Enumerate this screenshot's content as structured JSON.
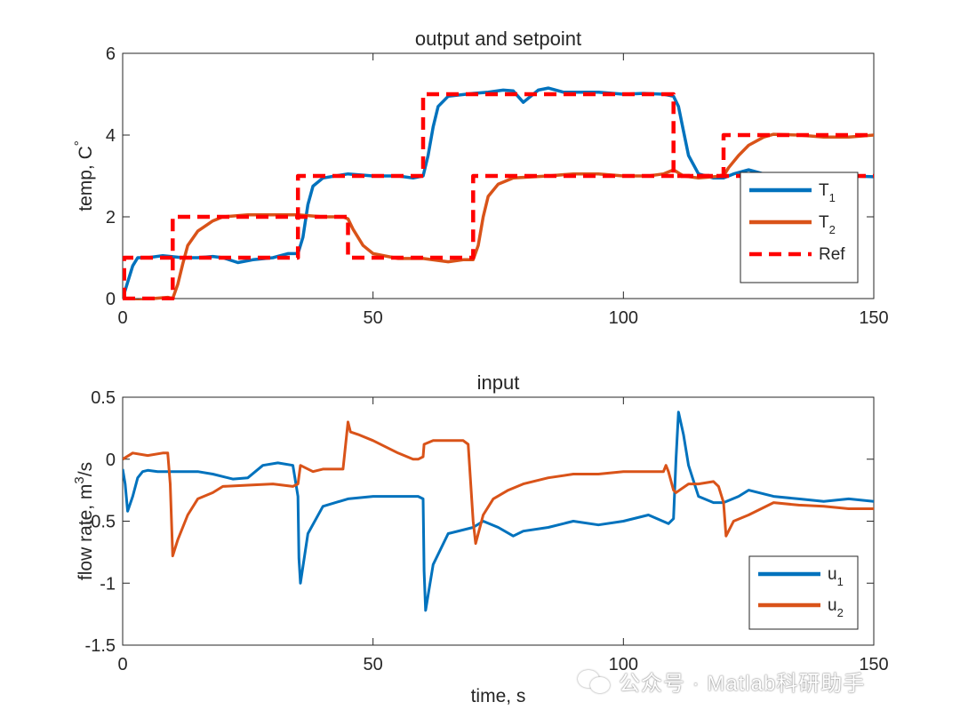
{
  "colors": {
    "t1": "#0072BD",
    "t2": "#D95319",
    "ref": "#FF0000",
    "axis": "#262626"
  },
  "watermark": {
    "text": "公众号 · Matlab科研助手"
  },
  "chart_data": [
    {
      "type": "line",
      "title": "output and setpoint",
      "xlabel": "",
      "ylabel": "temp, C",
      "ylabel_super": "°",
      "xlim": [
        0,
        150
      ],
      "ylim": [
        0,
        6
      ],
      "xticks": [
        0,
        50,
        100,
        150
      ],
      "xtick_labels": [
        "0",
        "50",
        "100",
        "150"
      ],
      "yticks": [
        0,
        2,
        4,
        6
      ],
      "ytick_labels": [
        "0",
        "2",
        "4",
        "6"
      ],
      "legend": {
        "position": "bottom-right",
        "entries": [
          {
            "base": "T",
            "sub": "1",
            "color": "#0072BD",
            "dash": ""
          },
          {
            "base": "T",
            "sub": "2",
            "color": "#D95319",
            "dash": ""
          },
          {
            "base": "Ref",
            "sub": "",
            "color": "#FF0000",
            "dash": "14 8"
          }
        ]
      },
      "series": [
        {
          "name": "T1",
          "color": "#0072BD",
          "width": 3.5,
          "x": [
            0,
            1,
            2,
            3,
            5,
            8,
            12,
            15,
            18,
            20,
            23,
            26,
            30,
            33,
            35,
            36,
            37,
            38,
            40,
            45,
            50,
            55,
            58,
            60,
            61,
            62,
            63,
            65,
            70,
            73,
            76,
            78,
            80,
            83,
            85,
            88,
            92,
            95,
            100,
            104,
            108,
            110,
            111,
            112,
            113,
            115,
            118,
            120,
            122,
            125,
            128,
            132,
            135,
            140,
            145,
            150
          ],
          "y": [
            0,
            0.4,
            0.8,
            1.0,
            1.0,
            1.05,
            1.0,
            1.0,
            1.03,
            1.0,
            0.88,
            0.95,
            1.0,
            1.1,
            1.1,
            1.5,
            2.3,
            2.75,
            2.95,
            3.05,
            3.0,
            3.0,
            2.95,
            3.0,
            3.5,
            4.2,
            4.7,
            4.95,
            5.02,
            5.05,
            5.1,
            5.08,
            4.8,
            5.1,
            5.15,
            5.05,
            5.05,
            5.05,
            5.0,
            5.02,
            5.0,
            4.95,
            4.7,
            4.1,
            3.5,
            3.05,
            2.95,
            2.95,
            3.05,
            3.15,
            3.05,
            2.95,
            3.0,
            2.95,
            3.0,
            2.98
          ]
        },
        {
          "name": "T2",
          "color": "#D95319",
          "width": 3.5,
          "x": [
            0,
            3,
            6,
            9,
            10,
            11,
            12,
            13,
            15,
            18,
            20,
            25,
            30,
            35,
            40,
            44,
            45,
            46,
            48,
            50,
            55,
            60,
            65,
            68,
            70,
            71,
            72,
            73,
            75,
            78,
            85,
            90,
            95,
            100,
            105,
            108,
            110,
            112,
            115,
            120,
            121,
            123,
            125,
            128,
            130,
            135,
            140,
            145,
            150
          ],
          "y": [
            0,
            -0.05,
            0,
            0.03,
            0,
            0.35,
            0.85,
            1.3,
            1.65,
            1.9,
            2.0,
            2.05,
            2.05,
            2.05,
            2.0,
            2.0,
            1.95,
            1.7,
            1.3,
            1.1,
            0.98,
            0.98,
            0.9,
            0.95,
            0.95,
            1.3,
            2.0,
            2.5,
            2.8,
            2.95,
            3.0,
            3.05,
            3.05,
            3.0,
            3.0,
            3.05,
            3.15,
            3.0,
            2.95,
            3.0,
            3.2,
            3.5,
            3.75,
            3.95,
            4.02,
            4.0,
            3.95,
            3.95,
            4.0
          ]
        },
        {
          "name": "Ref1",
          "color": "#FF0000",
          "width": 4.5,
          "dash": "14 8",
          "x": [
            0,
            0.3,
            0.3,
            35,
            35,
            60,
            60,
            110,
            110,
            150
          ],
          "y": [
            0,
            0,
            1,
            1,
            3,
            3,
            5,
            5,
            3,
            3
          ]
        },
        {
          "name": "Ref2",
          "color": "#FF0000",
          "width": 4.5,
          "dash": "14 8",
          "x": [
            0,
            10,
            10,
            45,
            45,
            70,
            70,
            120,
            120,
            150
          ],
          "y": [
            0,
            0,
            2,
            2,
            1,
            1,
            3,
            3,
            4,
            4
          ]
        }
      ]
    },
    {
      "type": "line",
      "title": "input",
      "xlabel": "time, s",
      "ylabel": "flow rate, m",
      "ylabel_super": "3",
      "ylabel_tail": "/s",
      "xlim": [
        0,
        150
      ],
      "ylim": [
        -1.5,
        0.5
      ],
      "xticks": [
        0,
        50,
        100,
        150
      ],
      "xtick_labels": [
        "0",
        "50",
        "100",
        "150"
      ],
      "yticks": [
        -1.5,
        -1,
        -0.5,
        0,
        0.5
      ],
      "ytick_labels": [
        "-1.5",
        "-1",
        "-0.5",
        "0",
        "0.5"
      ],
      "legend": {
        "position": "bottom-right",
        "entries": [
          {
            "base": "u",
            "sub": "1",
            "color": "#0072BD",
            "dash": ""
          },
          {
            "base": "u",
            "sub": "2",
            "color": "#D95319",
            "dash": ""
          }
        ]
      },
      "series": [
        {
          "name": "u1",
          "color": "#0072BD",
          "width": 3,
          "x": [
            0,
            0.5,
            1,
            2,
            3,
            4,
            5,
            7,
            10,
            15,
            18,
            22,
            25,
            28,
            31,
            34,
            35,
            35.2,
            35.5,
            37,
            40,
            45,
            50,
            55,
            59,
            60,
            60.2,
            60.5,
            62,
            65,
            70,
            72,
            75,
            78,
            80,
            85,
            90,
            95,
            100,
            105,
            109,
            110,
            110.5,
            111,
            112,
            113,
            115,
            118,
            120,
            123,
            125,
            130,
            135,
            140,
            145,
            150
          ],
          "y": [
            -0.08,
            -0.2,
            -0.42,
            -0.3,
            -0.15,
            -0.1,
            -0.09,
            -0.1,
            -0.1,
            -0.1,
            -0.12,
            -0.16,
            -0.15,
            -0.05,
            -0.03,
            -0.05,
            -0.3,
            -0.8,
            -1.0,
            -0.6,
            -0.38,
            -0.32,
            -0.3,
            -0.3,
            -0.3,
            -0.32,
            -0.9,
            -1.22,
            -0.85,
            -0.6,
            -0.55,
            -0.5,
            -0.55,
            -0.62,
            -0.58,
            -0.55,
            -0.5,
            -0.53,
            -0.5,
            -0.45,
            -0.52,
            -0.48,
            0.0,
            0.38,
            0.2,
            -0.05,
            -0.3,
            -0.35,
            -0.35,
            -0.3,
            -0.25,
            -0.3,
            -0.32,
            -0.34,
            -0.32,
            -0.34
          ]
        },
        {
          "name": "u2",
          "color": "#D95319",
          "width": 3,
          "x": [
            0,
            2,
            5,
            8,
            9,
            9.5,
            10,
            11,
            13,
            15,
            18,
            20,
            25,
            30,
            34,
            35,
            35.5,
            38,
            40,
            44,
            45,
            45.5,
            47,
            50,
            55,
            58,
            59,
            60,
            60.2,
            62,
            65,
            68,
            69,
            70,
            70.5,
            72,
            74,
            77,
            80,
            85,
            90,
            95,
            100,
            105,
            108,
            108.5,
            109,
            110,
            110.5,
            113,
            115,
            118,
            119,
            120,
            120.5,
            122,
            125,
            130,
            135,
            140,
            145,
            150
          ],
          "y": [
            0.0,
            0.05,
            0.03,
            0.05,
            0.05,
            -0.2,
            -0.78,
            -0.65,
            -0.45,
            -0.32,
            -0.27,
            -0.22,
            -0.21,
            -0.2,
            -0.22,
            -0.2,
            -0.05,
            -0.1,
            -0.08,
            -0.08,
            0.3,
            0.22,
            0.2,
            0.15,
            0.05,
            0.0,
            0.0,
            0.02,
            0.12,
            0.15,
            0.15,
            0.15,
            0.12,
            -0.5,
            -0.68,
            -0.45,
            -0.32,
            -0.25,
            -0.2,
            -0.15,
            -0.12,
            -0.12,
            -0.1,
            -0.1,
            -0.1,
            -0.05,
            -0.1,
            -0.25,
            -0.27,
            -0.2,
            -0.2,
            -0.18,
            -0.22,
            -0.35,
            -0.62,
            -0.5,
            -0.45,
            -0.35,
            -0.37,
            -0.38,
            -0.4,
            -0.4
          ]
        }
      ]
    }
  ]
}
